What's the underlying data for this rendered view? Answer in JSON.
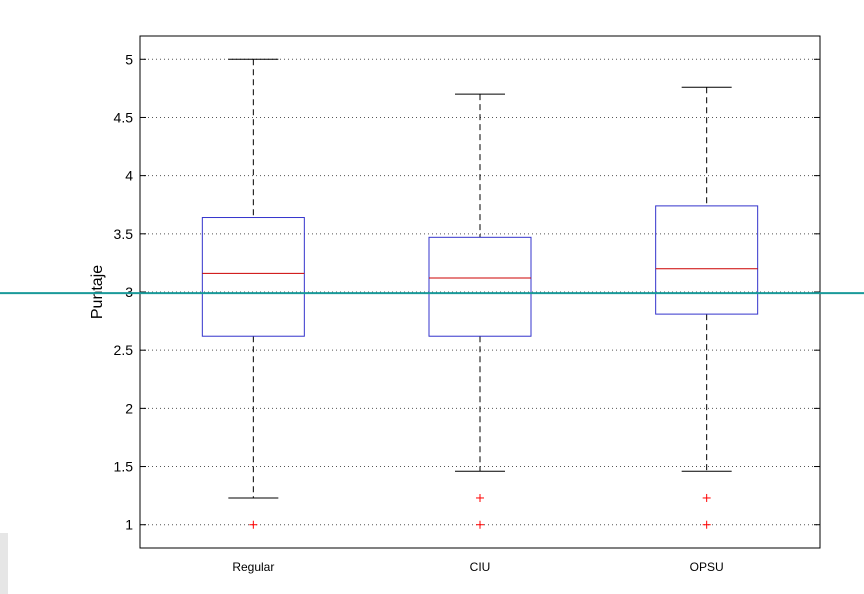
{
  "chart_data": {
    "type": "box",
    "title": "",
    "xlabel": "",
    "ylabel": "Puntaje",
    "ylim": [
      0.8,
      5.2
    ],
    "yticks": [
      1,
      1.5,
      2,
      2.5,
      3,
      3.5,
      4,
      4.5,
      5
    ],
    "ytick_labels": [
      "1",
      "1.5",
      "2",
      "2.5",
      "3",
      "3.5",
      "4",
      "4.5",
      "5"
    ],
    "grid": "horizontal dotted",
    "categories": [
      "Regular",
      "CIU",
      "OPSU"
    ],
    "boxes": [
      {
        "category": "Regular",
        "whisker_low": 1.23,
        "q1": 2.62,
        "median": 3.16,
        "q3": 3.64,
        "whisker_high": 5.0,
        "outliers": [
          1.0
        ]
      },
      {
        "category": "CIU",
        "whisker_low": 1.46,
        "q1": 2.62,
        "median": 3.12,
        "q3": 3.47,
        "whisker_high": 4.7,
        "outliers": [
          1.23,
          1.0
        ]
      },
      {
        "category": "OPSU",
        "whisker_low": 1.46,
        "q1": 2.81,
        "median": 3.2,
        "q3": 3.74,
        "whisker_high": 4.76,
        "outliers": [
          1.23,
          1.0
        ]
      }
    ],
    "reference_line": {
      "y": 2.99,
      "color": "#1a9a9a"
    },
    "colors": {
      "box": "#3333cc",
      "median": "#cc0000",
      "outlier": "#ff0000",
      "whisker": "#000000"
    }
  }
}
